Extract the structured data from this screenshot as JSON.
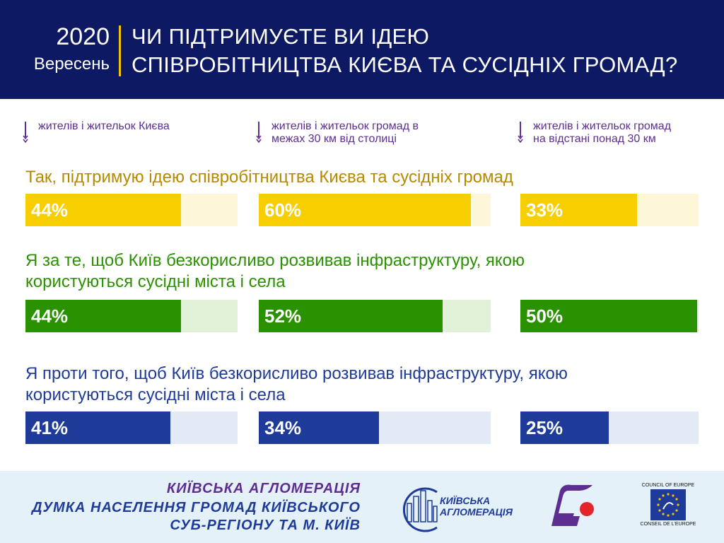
{
  "header": {
    "year": "2020",
    "month": "Вересень",
    "title_line1": "ЧИ ПІДТРИМУЄТЕ ВИ ІДЕЮ",
    "title_line2": "СПІВРОБІТНИЦТВА КИЄВА ТА СУСІДНІХ ГРОМАД?"
  },
  "groups": [
    {
      "line1": "жителів і жительок Києва",
      "line2": ""
    },
    {
      "line1": "жителів і жительок громад в",
      "line2": "межах 30 км від столиці"
    },
    {
      "line1": "жителів і жительок громад",
      "line2": "на відстані понад 30 км"
    }
  ],
  "chart_data": {
    "type": "bar",
    "title": "ЧИ ПІДТРИМУЄТЕ ВИ ІДЕЮ СПІВРОБІТНИЦТВА КИЄВА ТА СУСІДНІХ ГРОМАД?",
    "categories": [
      "жителів і жительок Києва",
      "жителів і жительок громад в межах 30 км від столиці",
      "жителів і жительок громад на відстані понад 30 км"
    ],
    "unit": "%",
    "ylim": [
      0,
      100
    ],
    "series": [
      {
        "name": "Так, підтримую ідею співробітництва Києва та сусідніх громад",
        "values": [
          44,
          60,
          33
        ],
        "labels": [
          "44%",
          "60%",
          "33%"
        ],
        "color": "#f7cf00",
        "bg": "#fdf6d8",
        "text_color": "#b68a00"
      },
      {
        "name": "Я за те, щоб Київ безкорисливо розвивав інфраструктуру, якою користуються сусідні міста і села",
        "values": [
          44,
          52,
          50
        ],
        "labels": [
          "44%",
          "52%",
          "50%"
        ],
        "color": "#2a9200",
        "bg": "#e2f2d8",
        "text_color": "#2a9200"
      },
      {
        "name": "Я проти того, щоб Київ безкорисливо розвивав інфраструктуру, якою користуються сусідні міста і села",
        "values": [
          41,
          34,
          25
        ],
        "labels": [
          "41%",
          "34%",
          "25%"
        ],
        "color": "#1f3b9a",
        "bg": "#e3e9f5",
        "text_color": "#1f3b9a"
      }
    ]
  },
  "questions": {
    "q1": "Так, підтримую ідею співробітництва Києва та сусідніх громад",
    "q2_line1": "Я за те, щоб Київ безкорисливо розвивав інфраструктуру, якою",
    "q2_line2": "користуються сусідні міста і села",
    "q3_line1": "Я проти того, щоб Київ безкорисливо розвивав інфраструктуру, якою",
    "q3_line2": "користуються сусідні міста і села"
  },
  "footer": {
    "line1": "КИЇВСЬКА АГЛОМЕРАЦІЯ",
    "line2": "ДУМКА НАСЕЛЕННЯ ГРОМАД КИЇВСЬКОГО",
    "line3": "СУБ-РЕГІОНУ ТА М. КИЇВ",
    "logo_text_line1": "КИЇВСЬКА",
    "logo_text_line2": "АГЛОМЕРАЦІЯ",
    "coe_top": "COUNCIL OF EUROPE",
    "coe_bottom": "CONSEIL DE L'EUROPE"
  },
  "colors": {
    "header_bg": "#0d1a63",
    "accent": "#f2c500",
    "purple": "#5e2d91",
    "footer_bg": "#e4f1f8"
  }
}
